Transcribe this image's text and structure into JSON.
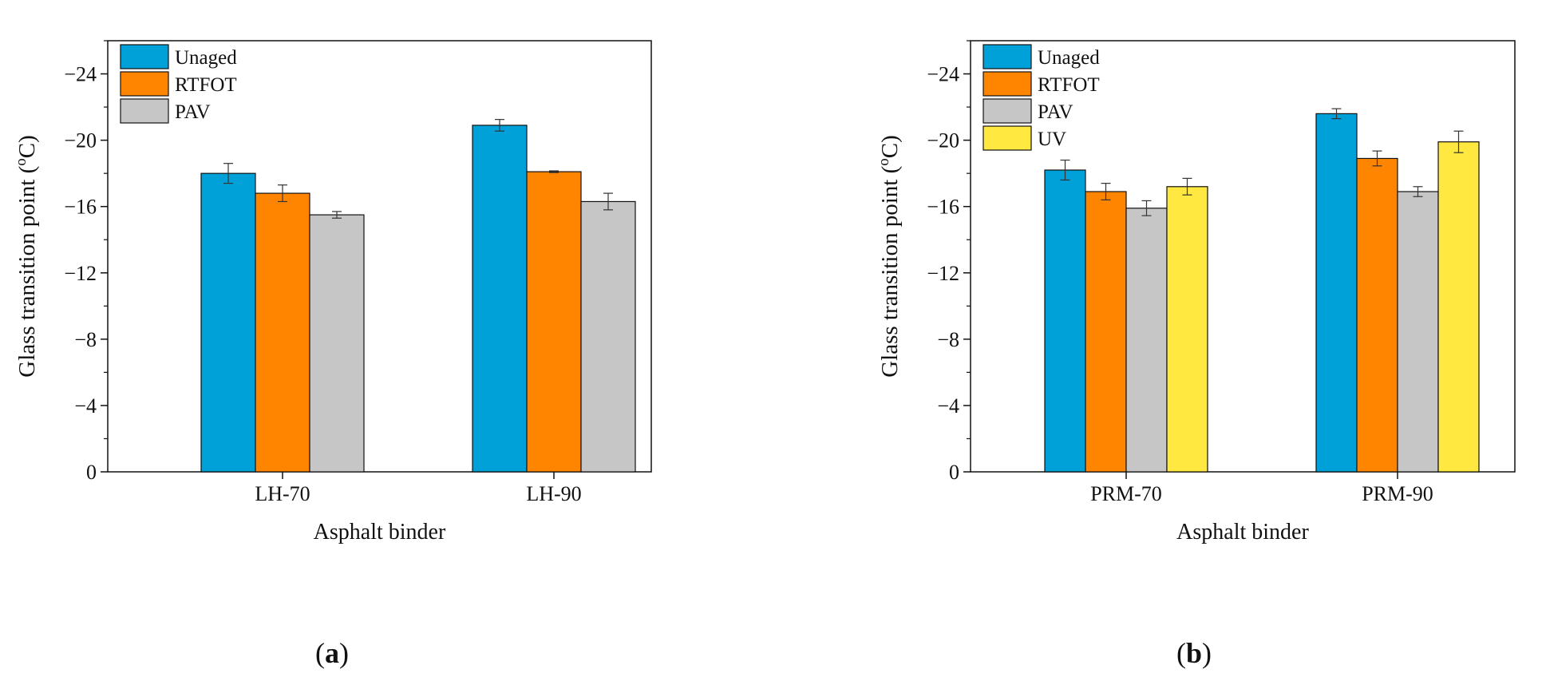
{
  "chart_data": [
    {
      "type": "bar",
      "panel_label": "(a)",
      "panel_letter": "a",
      "ylabel": "Glass transition point (°C)",
      "ylabel_base": "Glass transition point (",
      "ylabel_degree": "o",
      "ylabel_unit": "C)",
      "xlabel": "Asphalt binder",
      "ylim": [
        0,
        -26
      ],
      "yticks": [
        0,
        -4,
        -8,
        -12,
        -16,
        -20,
        -24
      ],
      "ytick_labels": [
        "0",
        "−4",
        "−8",
        "−12",
        "−16",
        "−20",
        "−24"
      ],
      "categories": [
        "LH-70",
        "LH-90"
      ],
      "series": [
        {
          "name": "Unaged",
          "color": "#00A0D8",
          "values": [
            -18.0,
            -20.9
          ],
          "errors": [
            0.6,
            0.35
          ]
        },
        {
          "name": "RTFOT",
          "color": "#FF8500",
          "values": [
            -16.8,
            -18.1
          ],
          "errors": [
            0.5,
            0.05
          ]
        },
        {
          "name": "PAV",
          "color": "#C6C6C6",
          "values": [
            -15.5,
            -16.3
          ],
          "errors": [
            0.2,
            0.5
          ]
        }
      ],
      "legend": "top-left"
    },
    {
      "type": "bar",
      "panel_label": "(b)",
      "panel_letter": "b",
      "ylabel": "Glass transition point (°C)",
      "ylabel_base": "Glass transition point (",
      "ylabel_degree": "o",
      "ylabel_unit": "C)",
      "xlabel": "Asphalt binder",
      "ylim": [
        0,
        -26
      ],
      "yticks": [
        0,
        -4,
        -8,
        -12,
        -16,
        -20,
        -24
      ],
      "ytick_labels": [
        "0",
        "−4",
        "−8",
        "−12",
        "−16",
        "−20",
        "−24"
      ],
      "categories": [
        "PRM-70",
        "PRM-90"
      ],
      "series": [
        {
          "name": "Unaged",
          "color": "#00A0D8",
          "values": [
            -18.2,
            -21.6
          ],
          "errors": [
            0.6,
            0.3
          ]
        },
        {
          "name": "RTFOT",
          "color": "#FF8500",
          "values": [
            -16.9,
            -18.9
          ],
          "errors": [
            0.5,
            0.45
          ]
        },
        {
          "name": "PAV",
          "color": "#C6C6C6",
          "values": [
            -15.9,
            -16.9
          ],
          "errors": [
            0.45,
            0.3
          ]
        },
        {
          "name": "UV",
          "color": "#FFE840",
          "values": [
            -17.2,
            -19.9
          ],
          "errors": [
            0.5,
            0.65
          ]
        }
      ],
      "legend": "top-left"
    }
  ]
}
